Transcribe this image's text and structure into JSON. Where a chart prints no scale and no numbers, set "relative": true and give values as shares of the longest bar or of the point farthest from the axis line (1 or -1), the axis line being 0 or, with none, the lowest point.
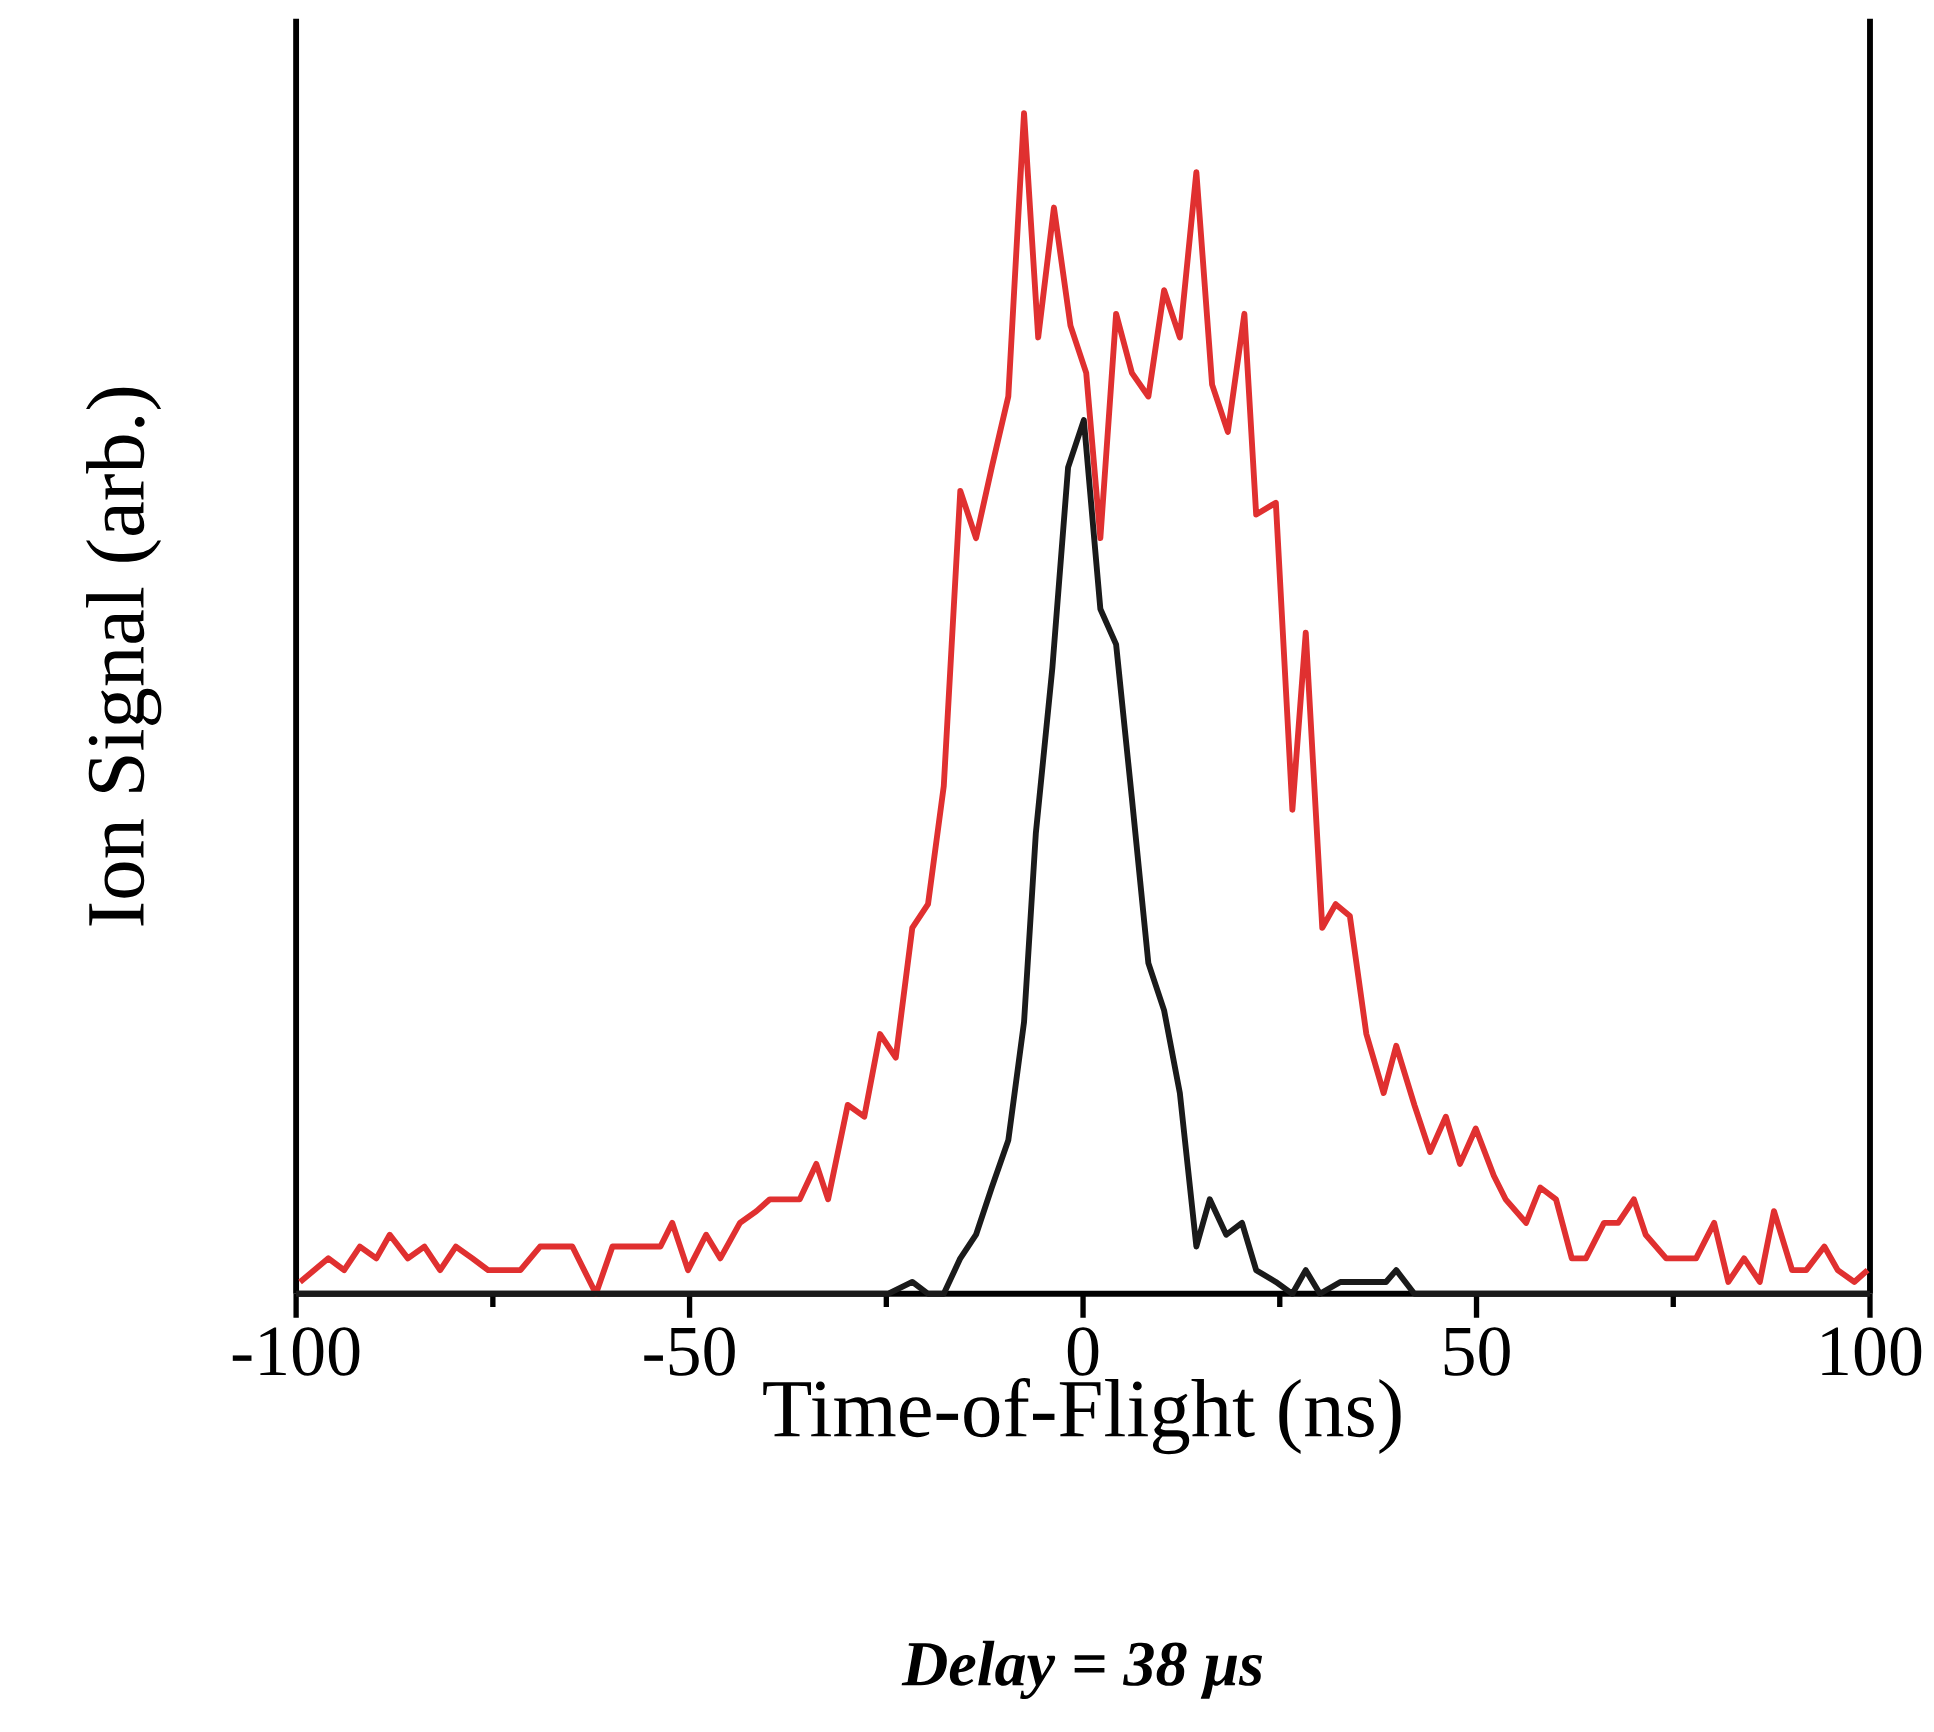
{
  "chart_data": {
    "type": "line",
    "relative": true,
    "xlabel": "Time-of-Flight (ns)",
    "ylabel": "Ion Signal (arb.)",
    "xlim": [
      -100,
      100
    ],
    "xticks": [
      -100,
      -50,
      0,
      50,
      100
    ],
    "annotations": [
      "Delay = 38 μs"
    ],
    "grid": false,
    "marker": "none",
    "line_style": "solid",
    "series": [
      {
        "color": "#e03030",
        "x": [
          -99.5,
          -95.9,
          -93.9,
          -91.9,
          -89.8,
          -88.1,
          -85.8,
          -83.7,
          -81.7,
          -79.7,
          -77.6,
          -75.6,
          -73.6,
          -71.5,
          -69.0,
          -66.5,
          -64.9,
          -61.9,
          -59.8,
          -57.6,
          -53.7,
          -52.2,
          -50.2,
          -47.9,
          -46.1,
          -43.6,
          -41.5,
          -39.8,
          -36.0,
          -33.9,
          -32.4,
          -29.9,
          -27.8,
          -25.8,
          -23.8,
          -21.7,
          -19.7,
          -17.7,
          -15.6,
          -13.6,
          -11.6,
          -9.5,
          -7.5,
          -5.7,
          -3.7,
          -1.6,
          0.4,
          2.2,
          4.2,
          6.2,
          8.3,
          10.3,
          12.3,
          14.4,
          16.4,
          18.4,
          20.5,
          22.0,
          24.5,
          26.6,
          28.3,
          30.4,
          32.1,
          33.9,
          36.0,
          38.2,
          39.8,
          42.1,
          44.1,
          46.1,
          47.9,
          49.9,
          52.2,
          53.7,
          56.3,
          58.1,
          60.1,
          62.1,
          63.9,
          66.2,
          68.0,
          70.0,
          71.5,
          74.1,
          75.9,
          77.9,
          80.2,
          82.0,
          84.0,
          86.0,
          87.8,
          90.1,
          91.9,
          94.2,
          95.9,
          98.0,
          99.7
        ],
        "values": [
          0.01,
          0.03,
          0.02,
          0.04,
          0.03,
          0.05,
          0.03,
          0.04,
          0.02,
          0.04,
          0.03,
          0.02,
          0.02,
          0.02,
          0.04,
          0.04,
          0.04,
          0.0,
          0.04,
          0.04,
          0.04,
          0.06,
          0.02,
          0.05,
          0.03,
          0.06,
          0.07,
          0.08,
          0.08,
          0.11,
          0.08,
          0.16,
          0.15,
          0.22,
          0.2,
          0.31,
          0.33,
          0.43,
          0.68,
          0.64,
          0.7,
          0.76,
          1.0,
          0.81,
          0.92,
          0.82,
          0.78,
          0.64,
          0.83,
          0.78,
          0.76,
          0.85,
          0.81,
          0.95,
          0.77,
          0.73,
          0.83,
          0.66,
          0.67,
          0.41,
          0.56,
          0.31,
          0.33,
          0.32,
          0.22,
          0.17,
          0.21,
          0.16,
          0.12,
          0.15,
          0.11,
          0.14,
          0.1,
          0.08,
          0.06,
          0.09,
          0.08,
          0.03,
          0.03,
          0.06,
          0.06,
          0.08,
          0.05,
          0.03,
          0.03,
          0.03,
          0.06,
          0.01,
          0.03,
          0.01,
          0.07,
          0.02,
          0.02,
          0.04,
          0.02,
          0.01,
          0.02
        ]
      },
      {
        "color": "#1a1a1a",
        "x": [
          -100,
          -30,
          -27.3,
          -24.8,
          -21.7,
          -19.7,
          -17.7,
          -15.6,
          -13.6,
          -11.6,
          -9.5,
          -7.5,
          -6.0,
          -3.9,
          -1.9,
          0.1,
          2.2,
          4.2,
          6.2,
          8.3,
          10.3,
          12.3,
          14.4,
          16.1,
          18.2,
          20.2,
          22.0,
          24.5,
          26.6,
          28.3,
          30.1,
          32.7,
          38.5,
          39.8,
          42.1,
          44.6,
          100
        ],
        "values": [
          0,
          0,
          0,
          0,
          0.01,
          0,
          0,
          0.03,
          0.05,
          0.09,
          0.13,
          0.23,
          0.39,
          0.53,
          0.7,
          0.74,
          0.58,
          0.55,
          0.42,
          0.28,
          0.24,
          0.17,
          0.04,
          0.08,
          0.05,
          0.06,
          0.02,
          0.01,
          0,
          0.02,
          0,
          0.01,
          0.01,
          0.02,
          0,
          0,
          0
        ]
      }
    ]
  }
}
